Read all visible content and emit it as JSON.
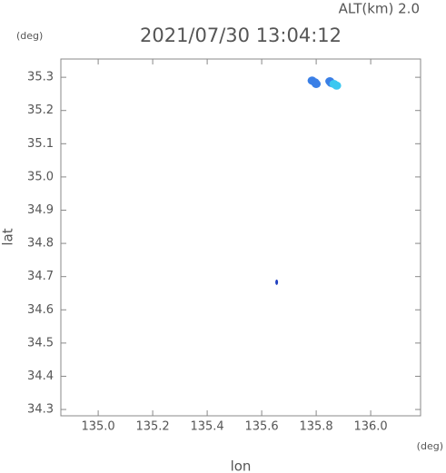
{
  "chart_data": {
    "type": "scatter",
    "title": "2021/07/30 13:04:12",
    "annotation": "ALT(km) 2.0",
    "y_unit": "(deg)",
    "x_unit": "(deg)",
    "xlabel": "lon",
    "ylabel": "lat",
    "xlim": [
      134.863,
      136.183
    ],
    "ylim": [
      34.281,
      35.355
    ],
    "xticks": [
      {
        "value": 135.0,
        "label": "135.0"
      },
      135.2,
      135.4,
      135.6,
      135.8,
      {
        "value": 136.0,
        "label": "136.0"
      }
    ],
    "yticks": [
      34.3,
      34.4,
      34.5,
      34.6,
      34.7,
      34.8,
      34.9,
      {
        "value": 35.0,
        "label": "35.0"
      },
      35.1,
      35.2,
      35.3
    ],
    "series": [
      {
        "color": "#3a7fe6",
        "x": [
          135.785,
          135.795,
          135.8,
          135.85,
          135.855
        ],
        "values": [
          35.29,
          35.285,
          35.28,
          35.288,
          35.283
        ]
      },
      {
        "color": "#3cc8f0",
        "x": [
          135.865,
          135.875
        ],
        "values": [
          35.28,
          35.275
        ]
      },
      {
        "color": "#2040c0",
        "x": [
          135.655
        ],
        "values": [
          34.683
        ]
      }
    ]
  }
}
